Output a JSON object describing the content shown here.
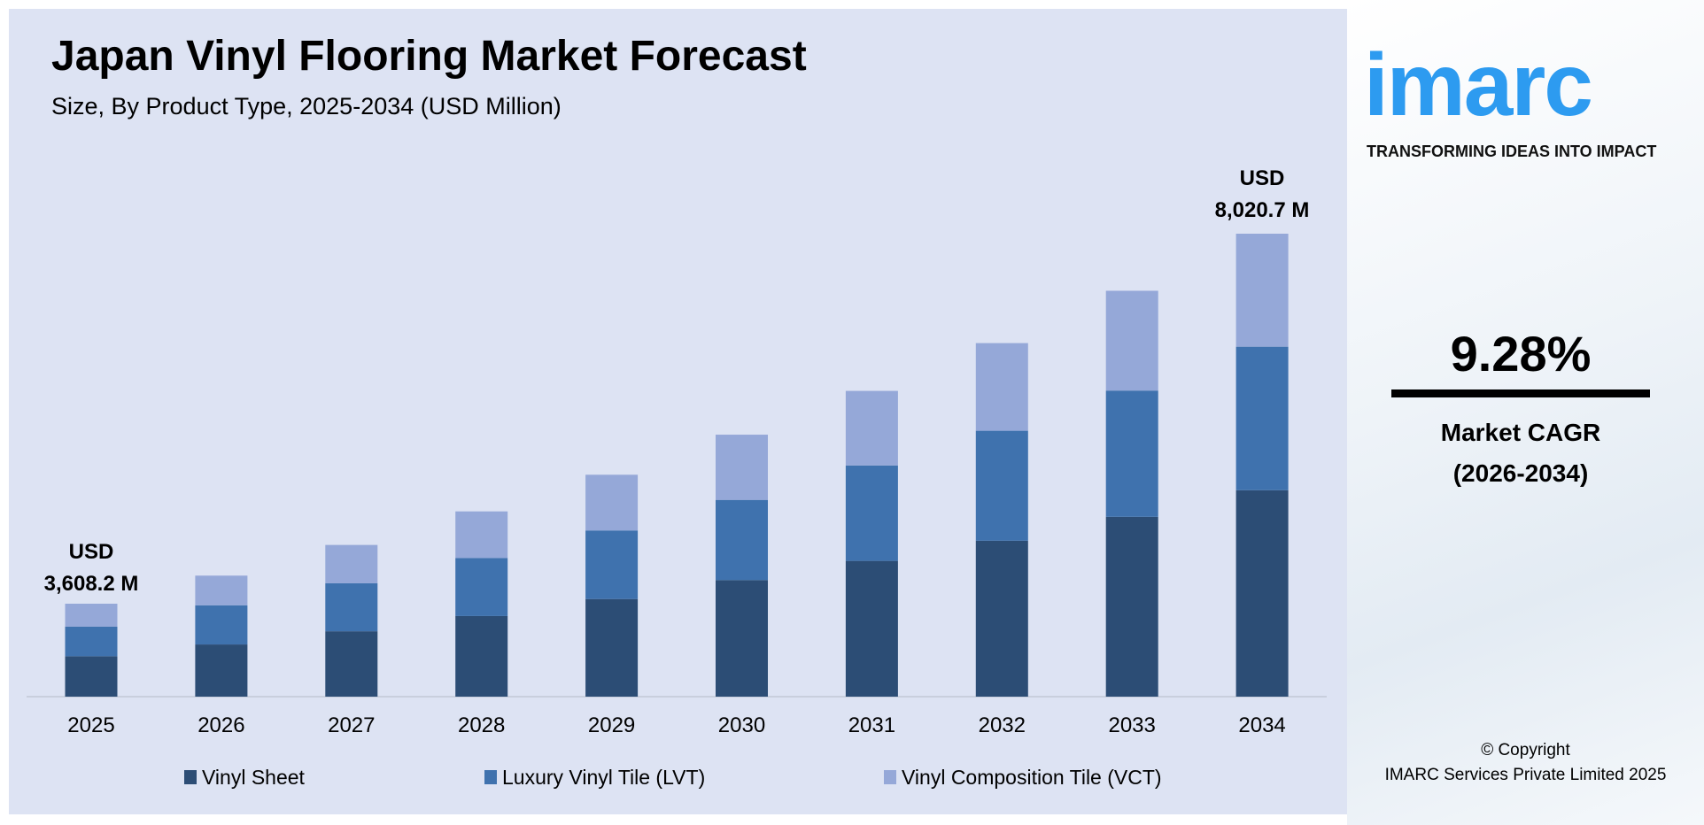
{
  "chart_data": {
    "type": "bar",
    "stacked": true,
    "title": "Japan Vinyl Flooring Market Forecast",
    "subtitle": "Size, By Product Type, 2025-2034 (USD Million)",
    "categories": [
      "2025",
      "2026",
      "2027",
      "2028",
      "2029",
      "2030",
      "2031",
      "2032",
      "2033",
      "2034"
    ],
    "series": [
      {
        "name": "Vinyl Sheet",
        "color": "#2c4d75",
        "values": [
          1570,
          1700,
          1857,
          2049,
          2264,
          2503,
          2729,
          2962,
          3252,
          3577
        ]
      },
      {
        "name": "Luxury Vinyl Tile (LVT)",
        "color": "#3f72ae",
        "values": [
          1146,
          1277,
          1366,
          1474,
          1590,
          1721,
          1918,
          2089,
          2283,
          2486
        ]
      },
      {
        "name": "Vinyl Composition Tile (VCT)",
        "color": "#95a8d8",
        "values": [
          892.2,
          966,
          1086,
          1186,
          1292,
          1400,
          1499,
          1665,
          1805,
          1957.7
        ]
      }
    ],
    "annotations": {
      "first": {
        "line1": "USD",
        "line2": "3,608.2 M"
      },
      "last": {
        "line1": "USD",
        "line2": "8,020.7 M"
      }
    },
    "legend_position": "bottom",
    "grid": false
  },
  "brand": {
    "logo": "imarc",
    "tagline": "TRANSFORMING IDEAS INTO IMPACT",
    "logo_color": "#2d9bf0"
  },
  "cagr": {
    "value": "9.28%",
    "label": "Market CAGR",
    "period": "(2026-2034)"
  },
  "copyright": {
    "line1": "© Copyright",
    "line2": "IMARC Services Private Limited 2025"
  }
}
